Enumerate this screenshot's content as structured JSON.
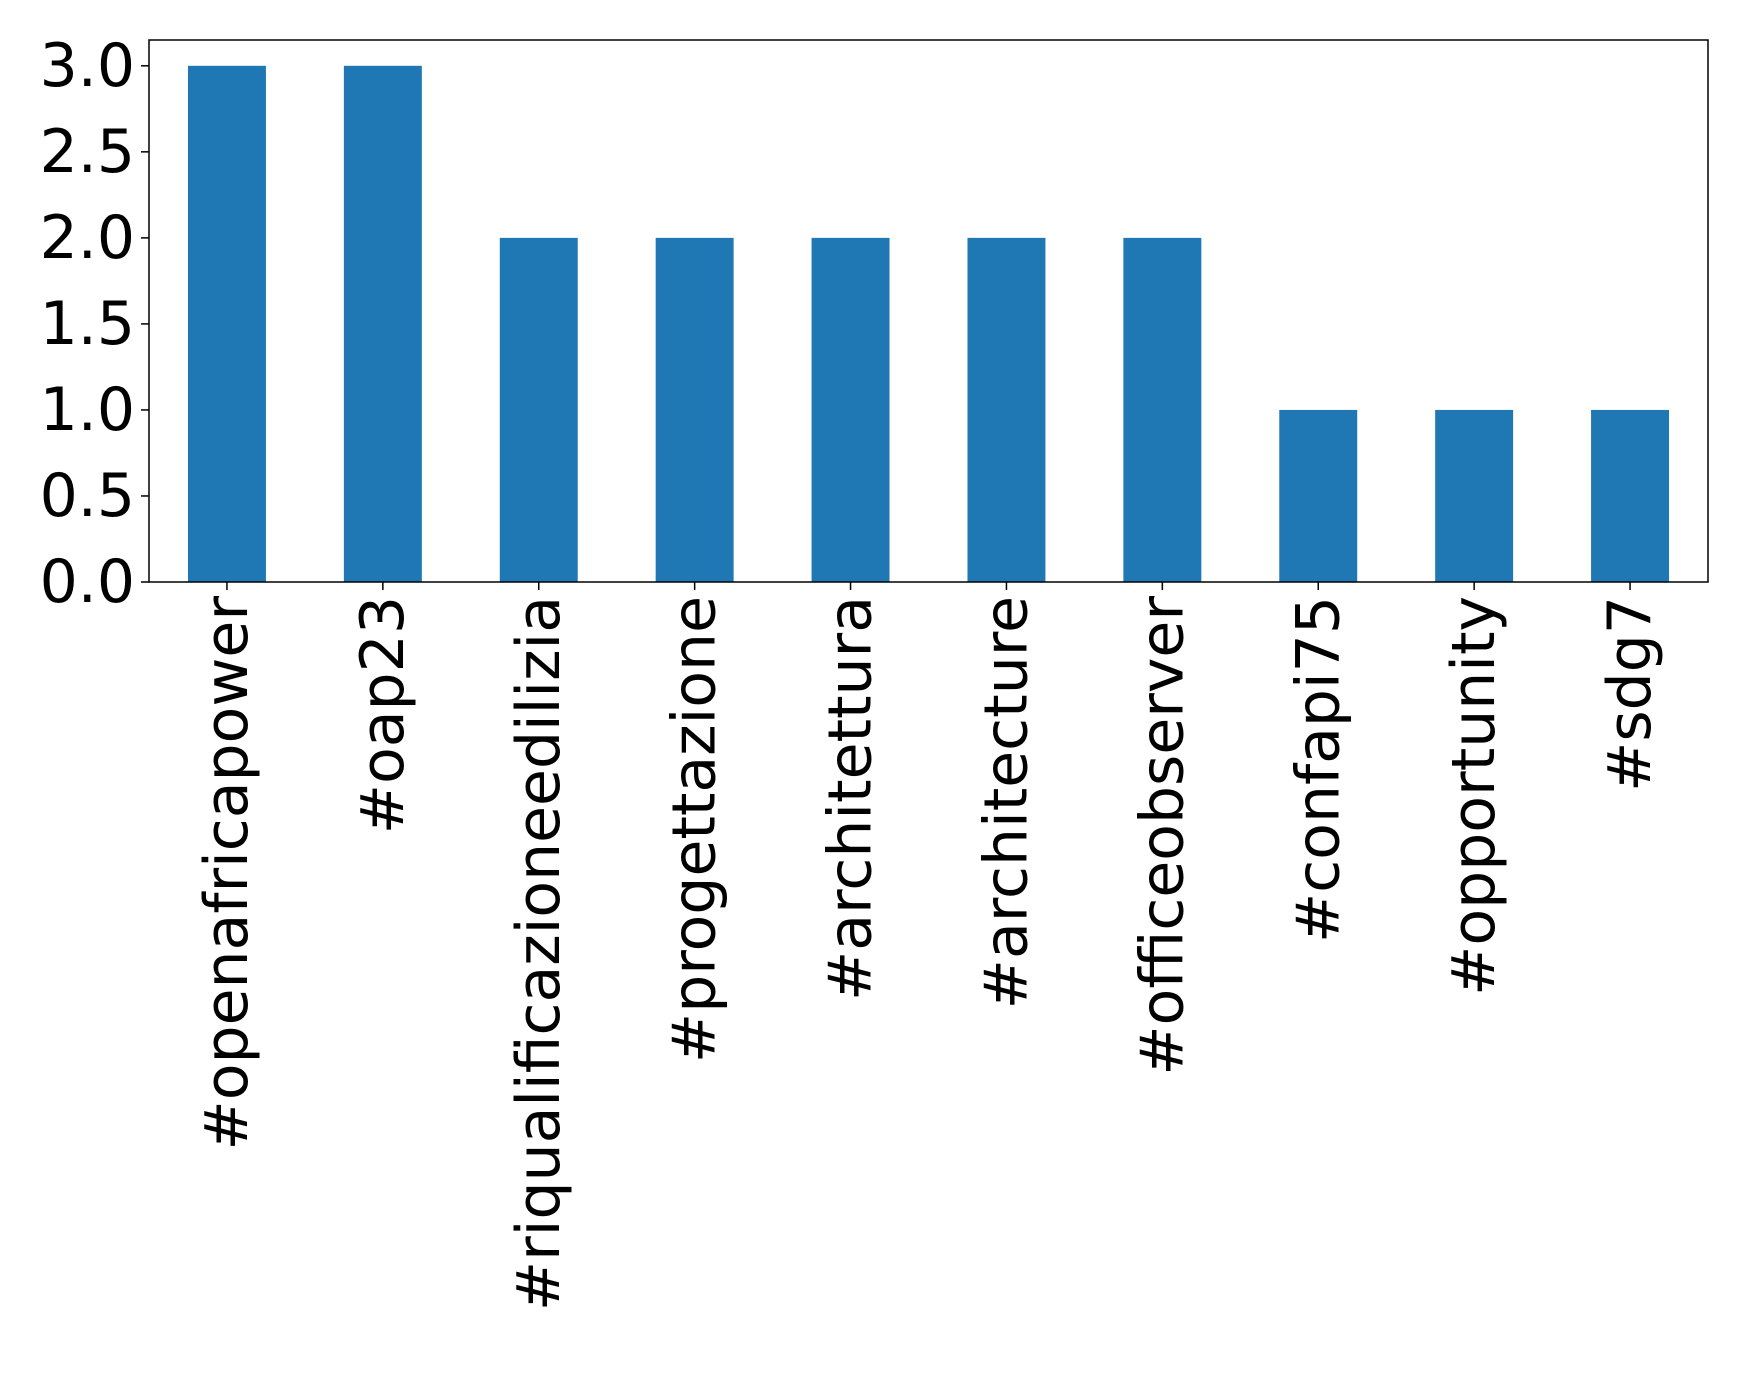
{
  "chart_data": {
    "type": "bar",
    "categories": [
      "#openafricapower",
      "#oap23",
      "#riqualificazioneedilizia",
      "#progettazione",
      "#architettura",
      "#architecture",
      "#officeobserver",
      "#confapi75",
      "#opportunity",
      "#sdg7"
    ],
    "values": [
      3,
      3,
      2,
      2,
      2,
      2,
      2,
      1,
      1,
      1
    ],
    "color": "#1f77b4",
    "ylim": [
      0,
      3.15
    ],
    "yticks": [
      {
        "value": 0,
        "label": "0.0"
      },
      {
        "value": 0.5,
        "label": "0.5"
      },
      {
        "value": 1,
        "label": "1.0"
      },
      {
        "value": 1.5,
        "label": "1.5"
      },
      {
        "value": 2,
        "label": "2.0"
      },
      {
        "value": 2.5,
        "label": "2.5"
      },
      {
        "value": 3,
        "label": "3.0"
      }
    ],
    "grid": false
  }
}
